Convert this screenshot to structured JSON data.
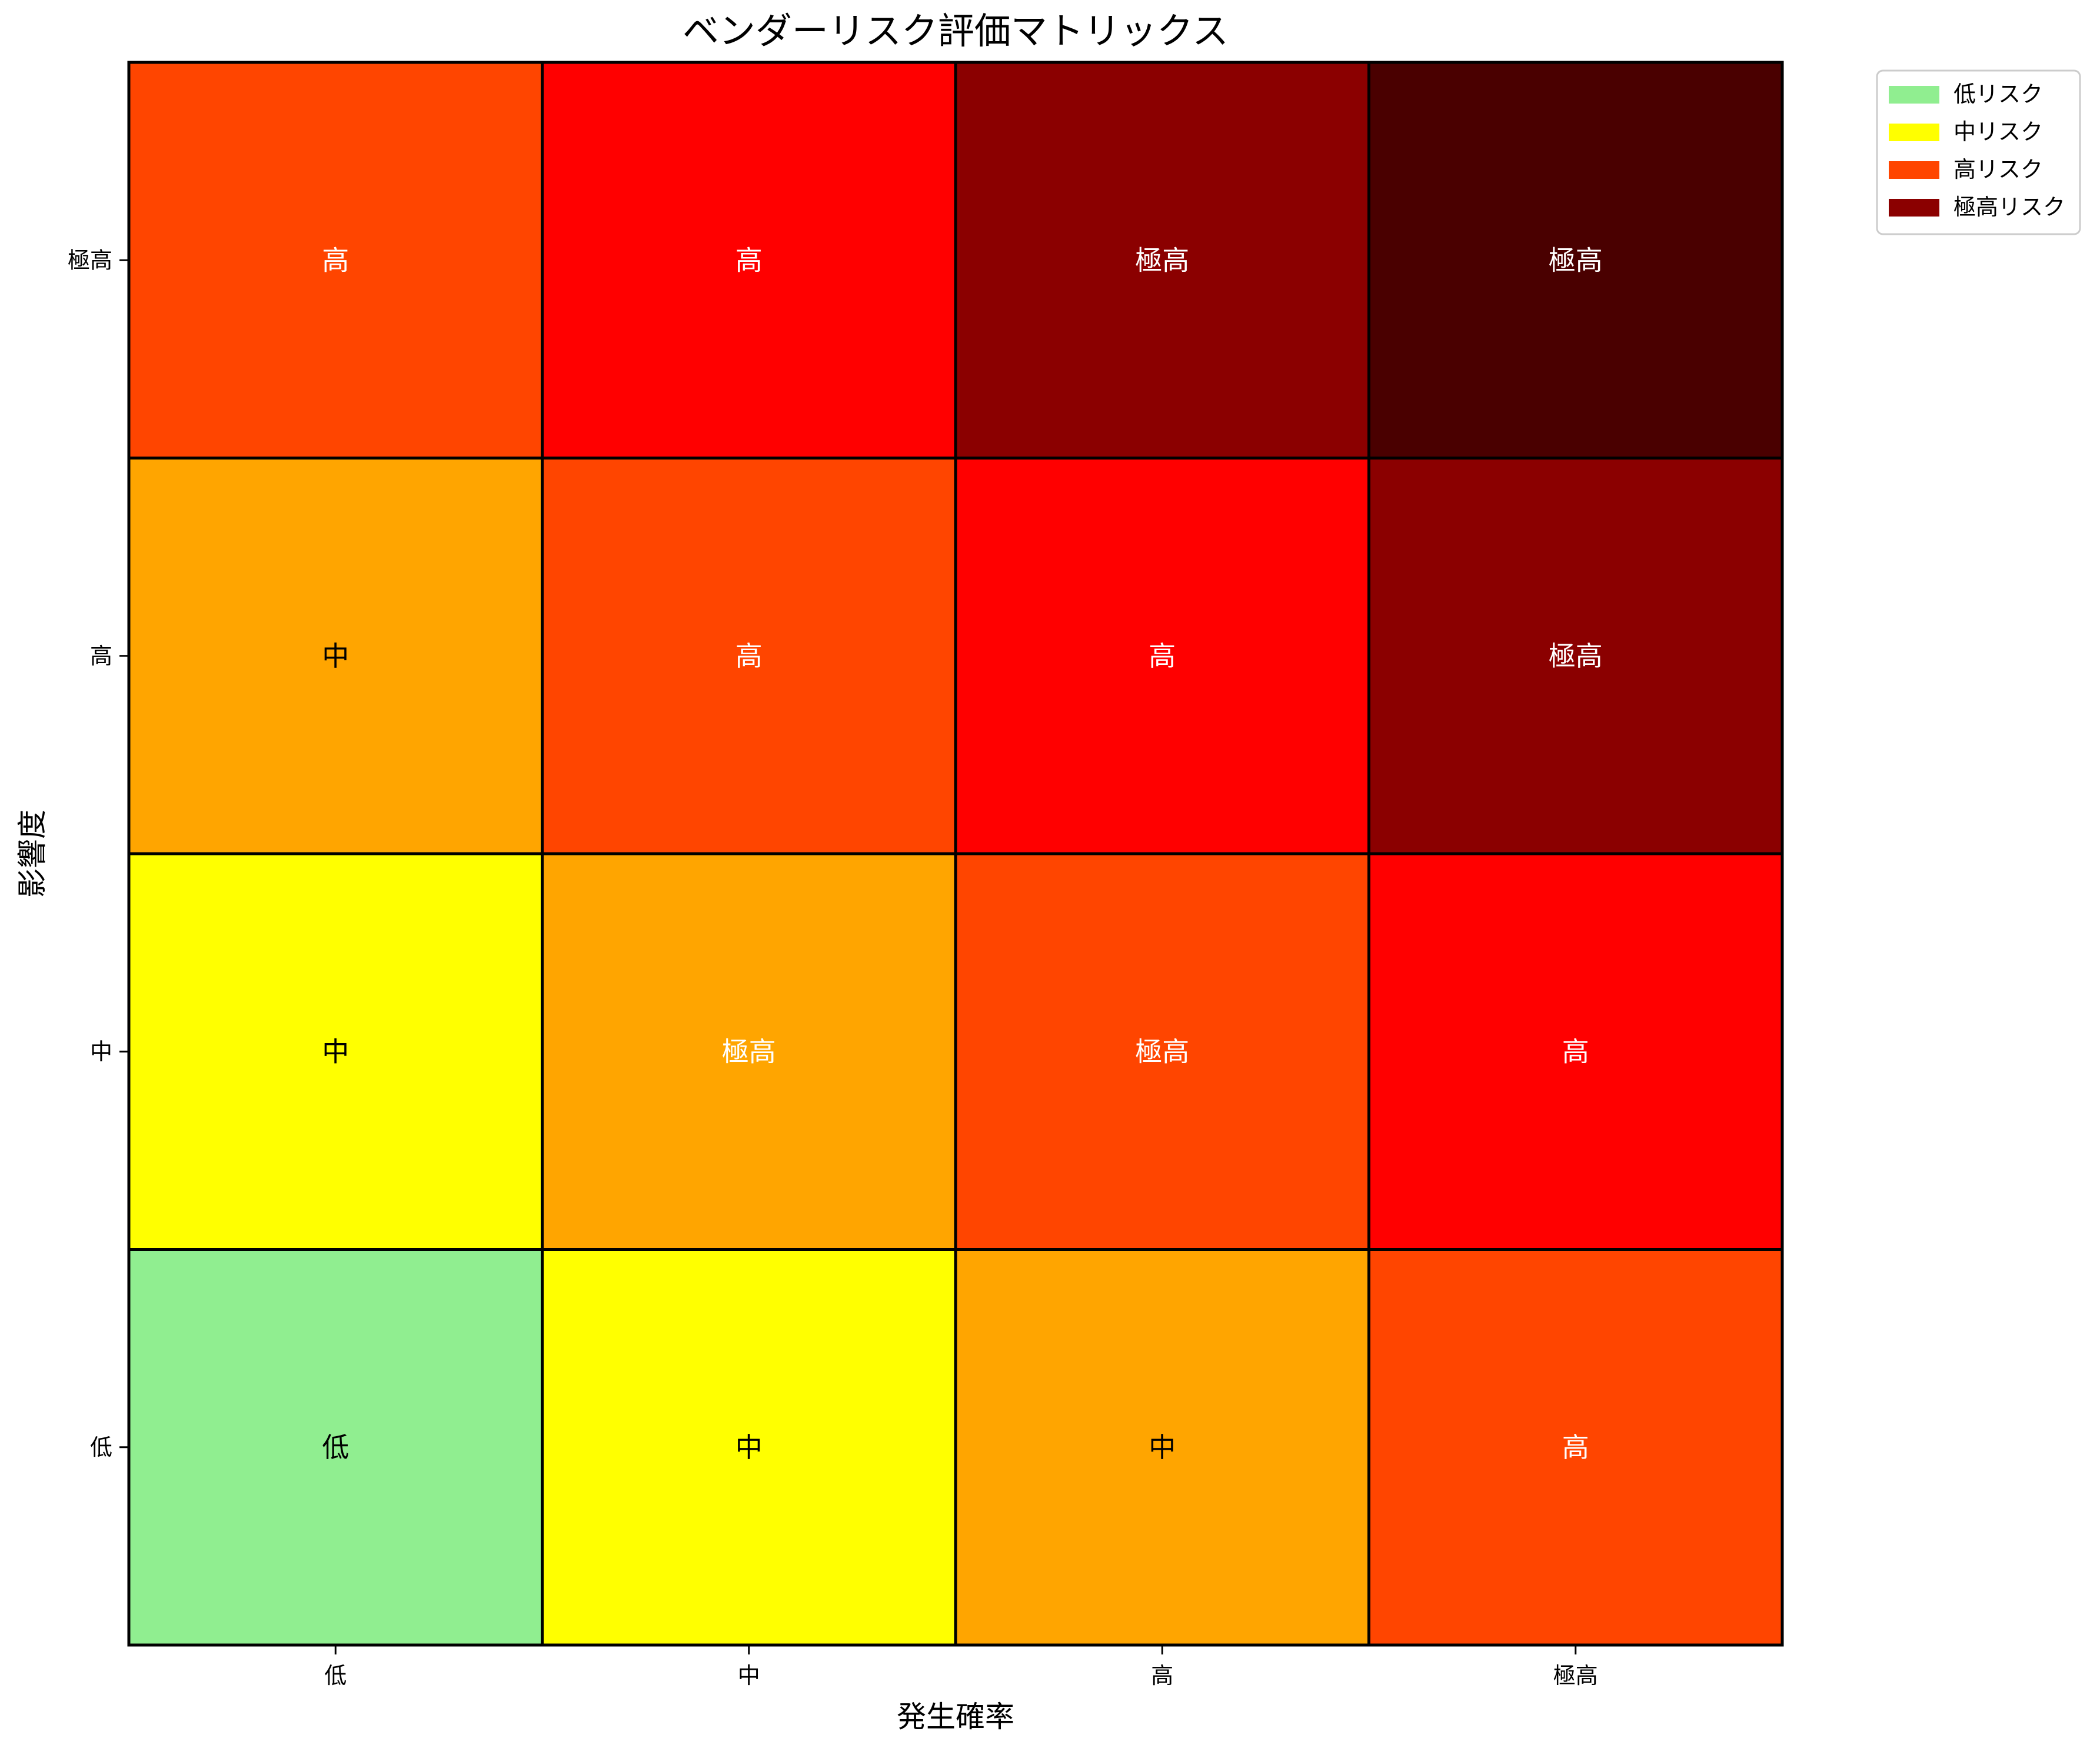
{
  "chart_data": {
    "type": "heatmap",
    "title": "ベンダーリスク評価マトリックス",
    "xlabel": "発生確率",
    "ylabel": "影響度",
    "x_categories": [
      "低",
      "中",
      "高",
      "極高"
    ],
    "y_categories": [
      "低",
      "中",
      "高",
      "極高"
    ],
    "cells": [
      {
        "x": "低",
        "y": "低",
        "label": "低",
        "color": "#90EE90",
        "text_color": "#000000"
      },
      {
        "x": "中",
        "y": "低",
        "label": "中",
        "color": "#FFFF00",
        "text_color": "#000000"
      },
      {
        "x": "高",
        "y": "低",
        "label": "中",
        "color": "#FFA500",
        "text_color": "#000000"
      },
      {
        "x": "極高",
        "y": "低",
        "label": "高",
        "color": "#FF4500",
        "text_color": "#ffffff"
      },
      {
        "x": "低",
        "y": "中",
        "label": "中",
        "color": "#FFFF00",
        "text_color": "#000000"
      },
      {
        "x": "中",
        "y": "中",
        "label": "極高",
        "color": "#FFA500",
        "text_color": "#ffffff"
      },
      {
        "x": "高",
        "y": "中",
        "label": "極高",
        "color": "#FF4500",
        "text_color": "#ffffff"
      },
      {
        "x": "極高",
        "y": "中",
        "label": "高",
        "color": "#FF0000",
        "text_color": "#ffffff"
      },
      {
        "x": "低",
        "y": "高",
        "label": "中",
        "color": "#FFA500",
        "text_color": "#000000"
      },
      {
        "x": "中",
        "y": "高",
        "label": "高",
        "color": "#FF4500",
        "text_color": "#ffffff"
      },
      {
        "x": "高",
        "y": "高",
        "label": "高",
        "color": "#FF0000",
        "text_color": "#ffffff"
      },
      {
        "x": "極高",
        "y": "高",
        "label": "極高",
        "color": "#8B0000",
        "text_color": "#ffffff"
      },
      {
        "x": "低",
        "y": "極高",
        "label": "高",
        "color": "#FF4500",
        "text_color": "#ffffff"
      },
      {
        "x": "中",
        "y": "極高",
        "label": "高",
        "color": "#FF0000",
        "text_color": "#ffffff"
      },
      {
        "x": "高",
        "y": "極高",
        "label": "極高",
        "color": "#8B0000",
        "text_color": "#ffffff"
      },
      {
        "x": "極高",
        "y": "極高",
        "label": "極高",
        "color": "#4A0000",
        "text_color": "#ffffff"
      }
    ],
    "legend": {
      "placement": "upper right, outside",
      "entries": [
        {
          "label": "低リスク",
          "color": "#90EE90"
        },
        {
          "label": "中リスク",
          "color": "#FFFF00"
        },
        {
          "label": "高リスク",
          "color": "#FF4500"
        },
        {
          "label": "極高リスク",
          "color": "#8B0000"
        }
      ]
    },
    "grid": false
  }
}
